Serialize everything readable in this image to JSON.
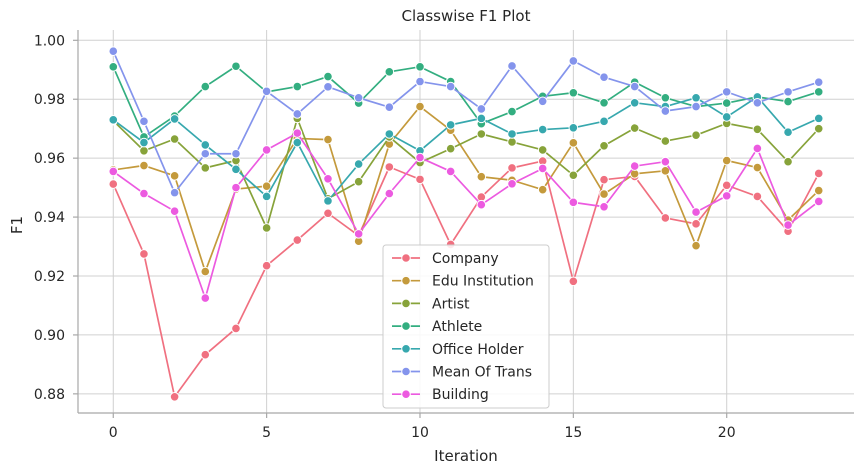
{
  "chart_data": {
    "type": "line",
    "title": "Classwise F1 Plot",
    "xlabel": "Iteration",
    "ylabel": "F1",
    "xlim": [
      -1.15,
      24.15
    ],
    "ylim": [
      0.8735,
      1.0035
    ],
    "xticks": [
      0,
      5,
      10,
      15,
      20
    ],
    "yticks": [
      0.88,
      0.9,
      0.92,
      0.94,
      0.96,
      0.98,
      1.0
    ],
    "ytick_labels": [
      "0.88",
      "0.90",
      "0.92",
      "0.94",
      "0.96",
      "0.98",
      "1.00"
    ],
    "grid": true,
    "legend_position": "bottom-center",
    "x": [
      0,
      1,
      2,
      3,
      4,
      5,
      6,
      7,
      8,
      9,
      10,
      11,
      12,
      13,
      14,
      15,
      16,
      17,
      18,
      19,
      20,
      21,
      22,
      23
    ],
    "series": [
      {
        "name": "Company",
        "color": "#f07080",
        "values": [
          0.9512,
          0.9275,
          0.879,
          0.8933,
          0.9022,
          0.9235,
          0.9322,
          0.9413,
          0.9337,
          0.957,
          0.9528,
          0.9307,
          0.9468,
          0.9567,
          0.959,
          0.9182,
          0.9527,
          0.9538,
          0.9397,
          0.9377,
          0.9508,
          0.947,
          0.9352,
          0.9548
        ]
      },
      {
        "name": "Edu Institution",
        "color": "#c49a3c",
        "values": [
          0.956,
          0.9575,
          0.954,
          0.9215,
          0.9495,
          0.9505,
          0.9667,
          0.9663,
          0.9318,
          0.9648,
          0.9775,
          0.9695,
          0.9537,
          0.9525,
          0.9493,
          0.9652,
          0.9478,
          0.9547,
          0.9557,
          0.9303,
          0.9592,
          0.9568,
          0.939,
          0.949
        ]
      },
      {
        "name": "Artist",
        "color": "#87a33a",
        "values": [
          0.9727,
          0.9625,
          0.9665,
          0.9567,
          0.9592,
          0.9363,
          0.9735,
          0.9462,
          0.952,
          0.9672,
          0.9585,
          0.9632,
          0.9682,
          0.9655,
          0.9628,
          0.9542,
          0.9642,
          0.9702,
          0.9658,
          0.9678,
          0.9718,
          0.9698,
          0.9588,
          0.97
        ]
      },
      {
        "name": "Athlete",
        "color": "#33ae80",
        "values": [
          0.991,
          0.9672,
          0.9743,
          0.9843,
          0.9912,
          0.9825,
          0.9843,
          0.9877,
          0.9787,
          0.9893,
          0.991,
          0.986,
          0.9717,
          0.9758,
          0.981,
          0.9822,
          0.9788,
          0.9858,
          0.9805,
          0.9775,
          0.9787,
          0.9808,
          0.9792,
          0.9825
        ]
      },
      {
        "name": "Office Holder",
        "color": "#37a8ae",
        "values": [
          0.973,
          0.9653,
          0.9733,
          0.9645,
          0.9562,
          0.947,
          0.9653,
          0.9455,
          0.958,
          0.9682,
          0.9625,
          0.9713,
          0.9735,
          0.9682,
          0.9697,
          0.9703,
          0.9725,
          0.9788,
          0.9775,
          0.9805,
          0.974,
          0.9808,
          0.9688,
          0.9735
        ]
      },
      {
        "name": "Mean Of Trans",
        "color": "#8494ec",
        "values": [
          0.9963,
          0.9725,
          0.9483,
          0.9615,
          0.9615,
          0.9827,
          0.975,
          0.9842,
          0.9805,
          0.9773,
          0.986,
          0.9843,
          0.9767,
          0.9913,
          0.9793,
          0.993,
          0.9875,
          0.9843,
          0.976,
          0.9775,
          0.9825,
          0.9788,
          0.9825,
          0.9858
        ]
      },
      {
        "name": "Building",
        "color": "#ec5ae0",
        "values": [
          0.9555,
          0.948,
          0.942,
          0.9125,
          0.95,
          0.9628,
          0.9685,
          0.953,
          0.9343,
          0.948,
          0.9602,
          0.9555,
          0.9442,
          0.9513,
          0.9565,
          0.945,
          0.9435,
          0.9573,
          0.9588,
          0.9417,
          0.9472,
          0.9633,
          0.9373,
          0.9453
        ]
      }
    ]
  }
}
